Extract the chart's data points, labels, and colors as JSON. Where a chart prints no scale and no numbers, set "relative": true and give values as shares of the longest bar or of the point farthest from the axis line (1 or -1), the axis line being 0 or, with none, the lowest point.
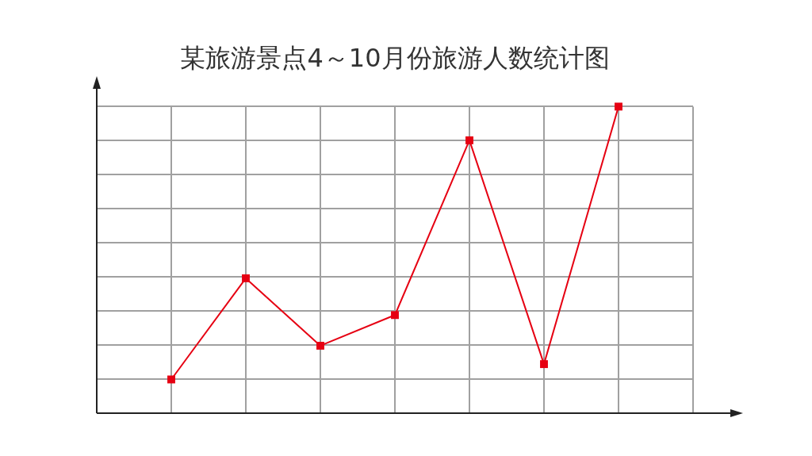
{
  "chart_data": {
    "type": "line",
    "title": "某旅游景点4～10月份旅游人数统计图",
    "categories": [
      null,
      null,
      null,
      null,
      null,
      null,
      null
    ],
    "relative": true,
    "series": [
      {
        "color": "#e60012",
        "values": [
          0.11,
          0.44,
          0.22,
          0.32,
          0.89,
          0.16,
          1
        ]
      }
    ],
    "grid": true,
    "legend": false,
    "marker": "square",
    "line_style": "solid"
  }
}
